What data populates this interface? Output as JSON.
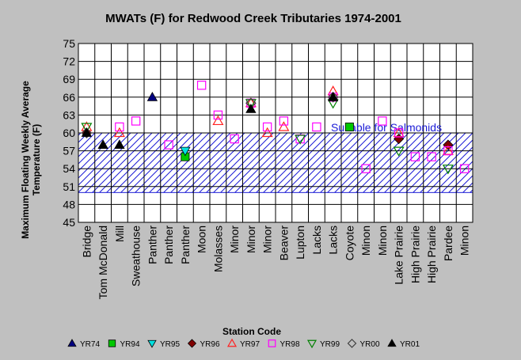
{
  "chart_data": {
    "type": "scatter",
    "title": "MWATs (F) for Redwood Creek Tributaries 1974-2001",
    "xlabel": "Station Code",
    "ylabel_lines": [
      "Maximum Floating Weekly Average",
      "Temperature (F)"
    ],
    "ylim": [
      45,
      75
    ],
    "yticks": [
      45,
      48,
      51,
      54,
      57,
      60,
      63,
      66,
      69,
      72,
      75
    ],
    "grid": true,
    "legend_position": "bottom",
    "categories": [
      "Bridge",
      "Tom McDonald",
      "Mill",
      "Sweathouse",
      "Panther",
      "Panther",
      "Panther",
      "Moon",
      "Molasses",
      "Minor",
      "Minor",
      "Minor",
      "Beaver",
      "Lupton",
      "Lacks",
      "Lacks",
      "Coyote",
      "Minon",
      "Minon",
      "Lake Prairie",
      "High Prairie",
      "High Prairie",
      "Pardee",
      "Minon"
    ],
    "band": {
      "from": 50,
      "to": 60,
      "label": "Suitable for Salmonids"
    },
    "series": [
      {
        "name": "YR74",
        "marker": "triangle-up-filled",
        "color": "#000080",
        "points": [
          [
            4,
            66
          ]
        ]
      },
      {
        "name": "YR94",
        "marker": "square-filled",
        "color": "#00c800",
        "points": [
          [
            6,
            56
          ],
          [
            16,
            61
          ]
        ]
      },
      {
        "name": "YR95",
        "marker": "triangle-down-filled",
        "color": "#00e0e0",
        "points": [
          [
            6,
            57
          ]
        ]
      },
      {
        "name": "YR96",
        "marker": "diamond-filled",
        "color": "#800000",
        "points": [
          [
            0,
            60
          ],
          [
            19,
            59
          ],
          [
            22,
            58
          ]
        ]
      },
      {
        "name": "YR97",
        "marker": "triangle-up-open",
        "color": "#ff2020",
        "points": [
          [
            0,
            61
          ],
          [
            2,
            60
          ],
          [
            8,
            62
          ],
          [
            10,
            65
          ],
          [
            11,
            60
          ],
          [
            12,
            61
          ],
          [
            15,
            67
          ],
          [
            19,
            60
          ],
          [
            22,
            57
          ]
        ]
      },
      {
        "name": "YR98",
        "marker": "square-open",
        "color": "#ff00ff",
        "points": [
          [
            2,
            61
          ],
          [
            3,
            62
          ],
          [
            5,
            58
          ],
          [
            7,
            68
          ],
          [
            8,
            63
          ],
          [
            9,
            59
          ],
          [
            10,
            65
          ],
          [
            11,
            61
          ],
          [
            12,
            62
          ],
          [
            13,
            59
          ],
          [
            14,
            61
          ],
          [
            15,
            66
          ],
          [
            17,
            54
          ],
          [
            18,
            62
          ],
          [
            19,
            60
          ],
          [
            20,
            56
          ],
          [
            21,
            56
          ],
          [
            22,
            57
          ],
          [
            23,
            54
          ]
        ]
      },
      {
        "name": "YR99",
        "marker": "triangle-down-open",
        "color": "#008000",
        "points": [
          [
            0,
            61
          ],
          [
            10,
            65
          ],
          [
            13,
            59
          ],
          [
            15,
            65
          ],
          [
            19,
            57
          ],
          [
            22,
            54
          ]
        ]
      },
      {
        "name": "YR00",
        "marker": "diamond-open",
        "color": "#404040",
        "points": [
          [
            0,
            60
          ],
          [
            10,
            65
          ],
          [
            15,
            66
          ]
        ]
      },
      {
        "name": "YR01",
        "marker": "triangle-up-filled",
        "color": "#000000",
        "points": [
          [
            0,
            60
          ],
          [
            1,
            58
          ],
          [
            2,
            58
          ],
          [
            10,
            64
          ],
          [
            15,
            66
          ]
        ]
      }
    ]
  }
}
